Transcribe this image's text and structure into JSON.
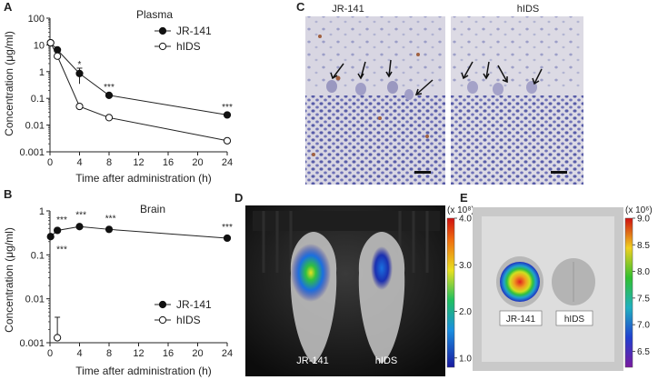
{
  "panels": {
    "A": {
      "letter": "A"
    },
    "B": {
      "letter": "B"
    },
    "C": {
      "letter": "C",
      "labels": [
        "JR-141",
        "hIDS"
      ]
    },
    "D": {
      "letter": "D",
      "labels": [
        "JR-141",
        "hIDS"
      ],
      "colorbar": {
        "unit": "(x 10⁸)",
        "ticks": [
          "4.0",
          "3.0",
          "2.0",
          "1.0"
        ],
        "tick_values": [
          4.0,
          3.0,
          2.0,
          1.0
        ],
        "min": 0.8,
        "max": 4.0
      }
    },
    "E": {
      "letter": "E",
      "labels": [
        "JR-141",
        "hIDS"
      ],
      "colorbar": {
        "unit": "(x 10⁶)",
        "ticks": [
          "9.0",
          "8.5",
          "8.0",
          "7.5",
          "7.0",
          "6.5"
        ],
        "tick_values": [
          9.0,
          8.5,
          8.0,
          7.5,
          7.0,
          6.5
        ],
        "min": 6.2,
        "max": 9.0
      }
    }
  },
  "chart_data": [
    {
      "id": "A",
      "type": "line",
      "title": "Plasma",
      "xlabel": "Time after administration (h)",
      "ylabel": "Concentration (μg/ml)",
      "yscale": "log",
      "xlim": [
        0,
        24
      ],
      "ylim": [
        0.001,
        100
      ],
      "xticks": [
        0,
        4,
        8,
        12,
        16,
        20,
        24
      ],
      "xtick_labels": [
        "0",
        "4",
        "8",
        "12",
        "16",
        "20",
        "24"
      ],
      "yticks": [
        0.001,
        0.01,
        0.1,
        1,
        10,
        100
      ],
      "ytick_labels": [
        "0.001",
        "0.01",
        "0.1",
        "1",
        "10",
        "100"
      ],
      "legend_position": "top-right",
      "series": [
        {
          "name": "JR-141",
          "marker": "filled",
          "x": [
            0.083,
            1,
            4,
            8,
            24
          ],
          "y": [
            12,
            6.5,
            0.85,
            0.13,
            0.024
          ],
          "err": [
            0,
            0,
            0.5,
            0,
            0
          ]
        },
        {
          "name": "hIDS",
          "marker": "open",
          "x": [
            0.083,
            1,
            4,
            8,
            24
          ],
          "y": [
            12,
            3.8,
            0.05,
            0.019,
            0.0026
          ],
          "err": [
            0,
            0,
            0,
            0,
            0
          ]
        }
      ],
      "annotations": [
        {
          "text": "*",
          "x": 4,
          "y": 2.0
        },
        {
          "text": "***",
          "x": 8,
          "y": 0.28
        },
        {
          "text": "***",
          "x": 24,
          "y": 0.05
        }
      ]
    },
    {
      "id": "B",
      "type": "line",
      "title": "Brain",
      "xlabel": "Time after administration (h)",
      "ylabel": "Concentration (μg/ml)",
      "yscale": "log",
      "xlim": [
        0,
        24
      ],
      "ylim": [
        0.001,
        1
      ],
      "xticks": [
        0,
        4,
        8,
        12,
        16,
        20,
        24
      ],
      "xtick_labels": [
        "0",
        "4",
        "8",
        "12",
        "16",
        "20",
        "24"
      ],
      "yticks": [
        0.001,
        0.01,
        0.1,
        1
      ],
      "ytick_labels": [
        "0.001",
        "0.01",
        "0.1",
        "1"
      ],
      "legend_position": "bottom-right",
      "series": [
        {
          "name": "JR-141",
          "marker": "filled",
          "x": [
            0.083,
            1,
            4,
            8,
            24
          ],
          "y": [
            0.26,
            0.36,
            0.44,
            0.38,
            0.24
          ],
          "err": [
            0,
            0,
            0,
            0,
            0
          ]
        },
        {
          "name": "hIDS",
          "marker": "open",
          "x": [
            1
          ],
          "y": [
            0.0013
          ],
          "err": [
            0.0025
          ]
        }
      ],
      "annotations": [
        {
          "text": "***",
          "x": 1.6,
          "y": 0.65
        },
        {
          "text": "***",
          "x": 1.6,
          "y": 0.14
        },
        {
          "text": "***",
          "x": 4.2,
          "y": 0.85
        },
        {
          "text": "***",
          "x": 8.2,
          "y": 0.7
        },
        {
          "text": "***",
          "x": 24,
          "y": 0.45
        }
      ]
    }
  ]
}
